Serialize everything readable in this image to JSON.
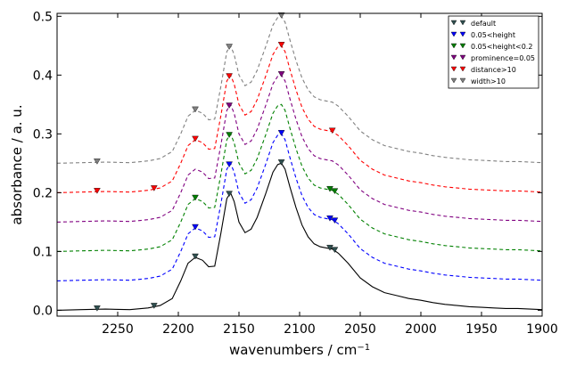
{
  "chart_data": {
    "type": "line",
    "xlabel": "wavenumbers / cm",
    "xlabel_superscript": "−1",
    "ylabel": "absorbance / a. u.",
    "xlim": [
      2300,
      1900
    ],
    "ylim": [
      -0.01,
      0.505
    ],
    "x_reversed": true,
    "x_ticks": [
      2250,
      2200,
      2150,
      2100,
      2050,
      2000,
      1950,
      1900
    ],
    "y_ticks": [
      0.0,
      0.1,
      0.2,
      0.3,
      0.4,
      0.5
    ],
    "x_tick_labels": [
      "2250",
      "2200",
      "2150",
      "2100",
      "2050",
      "2000",
      "1950",
      "1900"
    ],
    "y_tick_labels": [
      "0.0",
      "0.1",
      "0.2",
      "0.3",
      "0.4",
      "0.5"
    ],
    "grid": false,
    "legend_position": "top-right",
    "x": [
      2300,
      2280,
      2260,
      2240,
      2225,
      2215,
      2205,
      2198,
      2192,
      2186,
      2180,
      2175,
      2170,
      2165,
      2160,
      2157,
      2154,
      2150,
      2145,
      2140,
      2135,
      2128,
      2122,
      2118,
      2115,
      2112,
      2108,
      2103,
      2098,
      2093,
      2088,
      2083,
      2078,
      2073,
      2068,
      2060,
      2050,
      2040,
      2030,
      2020,
      2010,
      2000,
      1990,
      1980,
      1970,
      1960,
      1950,
      1940,
      1930,
      1920,
      1910,
      1900
    ],
    "base_curve": [
      0.0,
      0.001,
      0.002,
      0.001,
      0.004,
      0.008,
      0.02,
      0.05,
      0.08,
      0.09,
      0.085,
      0.074,
      0.075,
      0.13,
      0.19,
      0.2,
      0.185,
      0.15,
      0.132,
      0.138,
      0.158,
      0.198,
      0.235,
      0.248,
      0.25,
      0.24,
      0.21,
      0.175,
      0.145,
      0.125,
      0.113,
      0.108,
      0.106,
      0.104,
      0.097,
      0.08,
      0.055,
      0.04,
      0.03,
      0.025,
      0.02,
      0.017,
      0.013,
      0.01,
      0.008,
      0.006,
      0.005,
      0.004,
      0.003,
      0.003,
      0.002,
      0.001
    ],
    "series": [
      {
        "name": "default",
        "offset": 0.0,
        "color": "#000000",
        "line_style": "solid",
        "marker_color": "#2f4f4f",
        "peaks_x": [
          2267,
          2220,
          2186,
          2158,
          2115,
          2075,
          2071
        ]
      },
      {
        "name": "0.05<height",
        "offset": 0.05,
        "color": "#0000ff",
        "line_style": "dashed",
        "marker_color": "#0000ff",
        "peaks_x": [
          2186,
          2158,
          2115,
          2075,
          2071
        ]
      },
      {
        "name": "0.05<height<0.2",
        "offset": 0.1,
        "color": "#008000",
        "line_style": "dashed",
        "marker_color": "#008000",
        "peaks_x": [
          2186,
          2158,
          2075,
          2071
        ]
      },
      {
        "name": "prominence=0.05",
        "offset": 0.15,
        "color": "#800080",
        "line_style": "dashed",
        "marker_color": "#800080",
        "peaks_x": [
          2158,
          2115
        ]
      },
      {
        "name": "distance>10",
        "offset": 0.2,
        "color": "#ff0000",
        "line_style": "dashed",
        "marker_color": "#ff0000",
        "peaks_x": [
          2267,
          2220,
          2186,
          2158,
          2115,
          2073
        ]
      },
      {
        "name": "width>10",
        "offset": 0.25,
        "color": "#808080",
        "line_style": "dashed",
        "marker_color": "#808080",
        "peaks_x": [
          2267,
          2186,
          2158,
          2115
        ]
      }
    ]
  }
}
